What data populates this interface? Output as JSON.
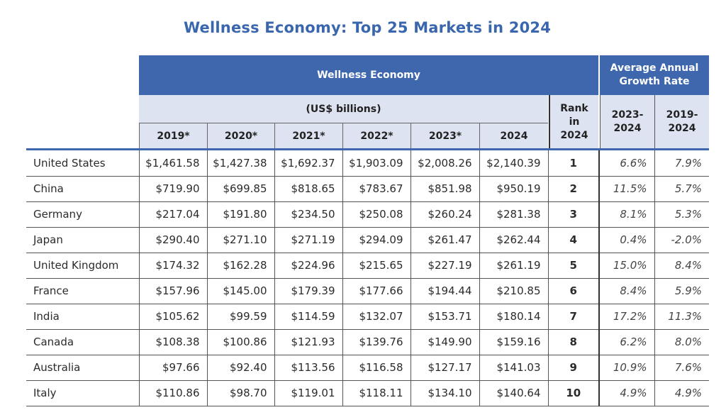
{
  "chart_data": {
    "type": "table",
    "title": "Wellness Economy: Top 25 Markets in 2024",
    "group_headers": {
      "economy": "Wellness Economy",
      "growth": "Average Annual Growth Rate",
      "units": "(US$ billions)",
      "rank": "Rank in 2024"
    },
    "columns": [
      "2019*",
      "2020*",
      "2021*",
      "2022*",
      "2023*",
      "2024"
    ],
    "growth_columns": [
      "2023-2024",
      "2019-2024"
    ],
    "rows": [
      {
        "country": "United States",
        "values": [
          "$1,461.58",
          "$1,427.38",
          "$1,692.37",
          "$1,903.09",
          "$2,008.26",
          "$2,140.39"
        ],
        "rank": "1",
        "growth": [
          "6.6%",
          "7.9%"
        ]
      },
      {
        "country": "China",
        "values": [
          "$719.90",
          "$699.85",
          "$818.65",
          "$783.67",
          "$851.98",
          "$950.19"
        ],
        "rank": "2",
        "growth": [
          "11.5%",
          "5.7%"
        ]
      },
      {
        "country": "Germany",
        "values": [
          "$217.04",
          "$191.80",
          "$234.50",
          "$250.08",
          "$260.24",
          "$281.38"
        ],
        "rank": "3",
        "growth": [
          "8.1%",
          "5.3%"
        ]
      },
      {
        "country": "Japan",
        "values": [
          "$290.40",
          "$271.10",
          "$271.19",
          "$294.09",
          "$261.47",
          "$262.44"
        ],
        "rank": "4",
        "growth": [
          "0.4%",
          "-2.0%"
        ]
      },
      {
        "country": "United Kingdom",
        "values": [
          "$174.32",
          "$162.28",
          "$224.96",
          "$215.65",
          "$227.19",
          "$261.19"
        ],
        "rank": "5",
        "growth": [
          "15.0%",
          "8.4%"
        ]
      },
      {
        "country": "France",
        "values": [
          "$157.96",
          "$145.00",
          "$179.39",
          "$177.66",
          "$194.44",
          "$210.85"
        ],
        "rank": "6",
        "growth": [
          "8.4%",
          "5.9%"
        ]
      },
      {
        "country": "India",
        "values": [
          "$105.62",
          "$99.59",
          "$114.59",
          "$132.07",
          "$153.71",
          "$180.14"
        ],
        "rank": "7",
        "growth": [
          "17.2%",
          "11.3%"
        ]
      },
      {
        "country": "Canada",
        "values": [
          "$108.38",
          "$100.86",
          "$121.93",
          "$139.76",
          "$149.90",
          "$159.16"
        ],
        "rank": "8",
        "growth": [
          "6.2%",
          "8.0%"
        ]
      },
      {
        "country": "Australia",
        "values": [
          "$97.66",
          "$92.40",
          "$113.56",
          "$116.58",
          "$127.17",
          "$141.03"
        ],
        "rank": "9",
        "growth": [
          "10.9%",
          "7.6%"
        ]
      },
      {
        "country": "Italy",
        "values": [
          "$110.86",
          "$98.70",
          "$119.01",
          "$118.11",
          "$134.10",
          "$140.64"
        ],
        "rank": "10",
        "growth": [
          "4.9%",
          "4.9%"
        ]
      }
    ],
    "colors": {
      "header_blue": "#3f67ad",
      "header_light": "#dde3f1",
      "title": "#3a66ae"
    }
  }
}
